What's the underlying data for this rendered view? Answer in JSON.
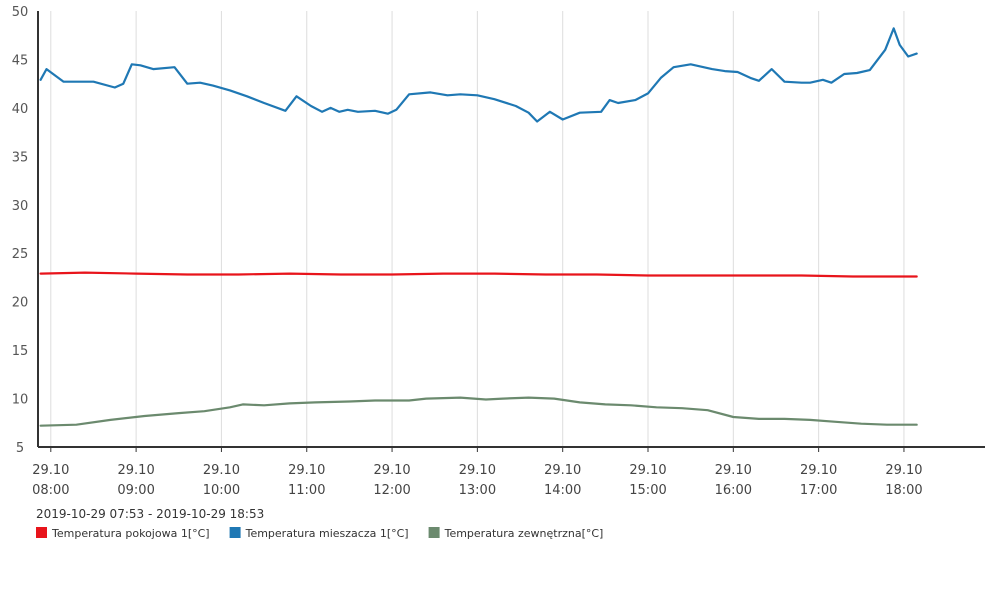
{
  "chart_data": {
    "type": "line",
    "title": "",
    "xlabel": "",
    "ylabel": "",
    "ylim": [
      5,
      50
    ],
    "yticks": [
      5,
      10,
      15,
      20,
      25,
      30,
      35,
      40,
      45,
      50
    ],
    "xlim": [
      7.85,
      18.95
    ],
    "xticks": [
      {
        "value": 8,
        "date": "29.10",
        "time": "08:00"
      },
      {
        "value": 9,
        "date": "29.10",
        "time": "09:00"
      },
      {
        "value": 10,
        "date": "29.10",
        "time": "10:00"
      },
      {
        "value": 11,
        "date": "29.10",
        "time": "11:00"
      },
      {
        "value": 12,
        "date": "29.10",
        "time": "12:00"
      },
      {
        "value": 13,
        "date": "29.10",
        "time": "13:00"
      },
      {
        "value": 14,
        "date": "29.10",
        "time": "14:00"
      },
      {
        "value": 15,
        "date": "29.10",
        "time": "15:00"
      },
      {
        "value": 16,
        "date": "29.10",
        "time": "16:00"
      },
      {
        "value": 17,
        "date": "29.10",
        "time": "17:00"
      },
      {
        "value": 18,
        "date": "29.10",
        "time": "18:00"
      }
    ],
    "range_label": "2019-10-29 07:53 - 2019-10-29 18:53",
    "grid": true,
    "legend_position": "bottom-left",
    "series": [
      {
        "name": "Temperatura pokojowa 1[°C]",
        "color": "#e8141b",
        "x": [
          7.88,
          8.4,
          9.0,
          9.6,
          10.2,
          10.8,
          11.4,
          12.0,
          12.6,
          13.2,
          13.8,
          14.4,
          15.0,
          15.6,
          16.2,
          16.8,
          17.4,
          18.0,
          18.15
        ],
        "y": [
          22.9,
          23.0,
          22.9,
          22.8,
          22.8,
          22.9,
          22.8,
          22.8,
          22.9,
          22.9,
          22.8,
          22.8,
          22.7,
          22.7,
          22.7,
          22.7,
          22.6,
          22.6,
          22.6
        ]
      },
      {
        "name": "Temperatura mieszacza 1[°C]",
        "color": "#1f78b4",
        "x": [
          7.88,
          7.95,
          8.15,
          8.5,
          8.75,
          8.85,
          8.95,
          9.05,
          9.2,
          9.45,
          9.6,
          9.75,
          9.9,
          10.1,
          10.3,
          10.5,
          10.75,
          10.88,
          11.05,
          11.18,
          11.28,
          11.38,
          11.48,
          11.6,
          11.8,
          11.95,
          12.05,
          12.2,
          12.45,
          12.65,
          12.8,
          13.0,
          13.2,
          13.45,
          13.6,
          13.7,
          13.85,
          14.0,
          14.2,
          14.45,
          14.55,
          14.65,
          14.85,
          15.0,
          15.15,
          15.3,
          15.5,
          15.75,
          15.9,
          16.05,
          16.2,
          16.3,
          16.45,
          16.6,
          16.8,
          16.9,
          17.05,
          17.15,
          17.3,
          17.45,
          17.6,
          17.78,
          17.88,
          17.95,
          18.05,
          18.15
        ],
        "y": [
          42.9,
          44.0,
          42.7,
          42.7,
          42.1,
          42.5,
          44.5,
          44.4,
          44.0,
          44.2,
          42.5,
          42.6,
          42.3,
          41.8,
          41.2,
          40.5,
          39.7,
          41.2,
          40.2,
          39.6,
          40.0,
          39.6,
          39.8,
          39.6,
          39.7,
          39.4,
          39.8,
          41.4,
          41.6,
          41.3,
          41.4,
          41.3,
          40.9,
          40.2,
          39.5,
          38.6,
          39.6,
          38.8,
          39.5,
          39.6,
          40.8,
          40.5,
          40.8,
          41.5,
          43.1,
          44.2,
          44.5,
          44.0,
          43.8,
          43.7,
          43.1,
          42.8,
          44.0,
          42.7,
          42.6,
          42.6,
          42.9,
          42.6,
          43.5,
          43.6,
          43.9,
          46.0,
          48.2,
          46.5,
          45.3,
          45.6
        ]
      },
      {
        "name": "Temperatura zewnętrzna[°C]",
        "color": "#6b8a6e",
        "x": [
          7.88,
          8.3,
          8.7,
          9.1,
          9.5,
          9.8,
          10.1,
          10.25,
          10.5,
          10.8,
          11.1,
          11.5,
          11.8,
          12.0,
          12.2,
          12.4,
          12.8,
          13.1,
          13.3,
          13.6,
          13.9,
          14.2,
          14.5,
          14.8,
          15.1,
          15.4,
          15.7,
          16.0,
          16.3,
          16.6,
          16.9,
          17.2,
          17.5,
          17.8,
          18.0,
          18.15
        ],
        "y": [
          7.2,
          7.3,
          7.8,
          8.2,
          8.5,
          8.7,
          9.1,
          9.4,
          9.3,
          9.5,
          9.6,
          9.7,
          9.8,
          9.8,
          9.8,
          10.0,
          10.1,
          9.9,
          10.0,
          10.1,
          10.0,
          9.6,
          9.4,
          9.3,
          9.1,
          9.0,
          8.8,
          8.1,
          7.9,
          7.9,
          7.8,
          7.6,
          7.4,
          7.3,
          7.3,
          7.3
        ]
      }
    ]
  }
}
